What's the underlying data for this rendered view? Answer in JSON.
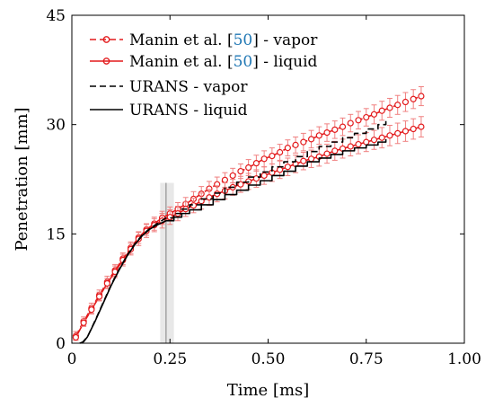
{
  "chart_data": {
    "type": "line",
    "xlabel": "Time [ms]",
    "ylabel": "Penetration [mm]",
    "xlim": [
      0,
      1.0
    ],
    "ylim": [
      0,
      45
    ],
    "xticks": [
      0,
      0.25,
      0.5,
      0.75,
      1.0
    ],
    "xtick_labels": [
      "0",
      "0.25",
      "0.50",
      "0.75",
      "1.00"
    ],
    "yticks": [
      0,
      15,
      30,
      45
    ],
    "ytick_labels": [
      "0",
      "15",
      "30",
      "45"
    ],
    "grid": false,
    "legend_position": "top-left",
    "shaded_band": {
      "x_start": 0.225,
      "x_end": 0.26,
      "marker_x": 0.24,
      "y_top": 22
    },
    "series": [
      {
        "name_prefix": "Manin et al. [",
        "name_ref": "50",
        "name_suffix": "] - vapor",
        "color": "#e31a1c",
        "dash": "dashed",
        "marker": "circle",
        "x": [
          0.01,
          0.03,
          0.05,
          0.07,
          0.09,
          0.11,
          0.13,
          0.15,
          0.17,
          0.19,
          0.21,
          0.23,
          0.25,
          0.27,
          0.29,
          0.31,
          0.33,
          0.35,
          0.37,
          0.39,
          0.41,
          0.43,
          0.45,
          0.47,
          0.49,
          0.51,
          0.53,
          0.55,
          0.57,
          0.59,
          0.61,
          0.63,
          0.65,
          0.67,
          0.69,
          0.71,
          0.73,
          0.75,
          0.77,
          0.79,
          0.81,
          0.83,
          0.85,
          0.87,
          0.89
        ],
        "y": [
          1.0,
          3.0,
          4.8,
          6.6,
          8.4,
          10.0,
          11.6,
          13.1,
          14.5,
          15.6,
          16.4,
          17.2,
          17.8,
          18.4,
          19.1,
          19.8,
          20.5,
          21.2,
          21.8,
          22.4,
          23.0,
          23.6,
          24.1,
          24.7,
          25.3,
          25.7,
          26.2,
          26.8,
          27.2,
          27.6,
          28.0,
          28.5,
          28.9,
          29.3,
          29.7,
          30.2,
          30.6,
          31.0,
          31.4,
          31.9,
          32.3,
          32.7,
          33.1,
          33.5,
          33.9
        ],
        "err": [
          0.6,
          0.6,
          0.7,
          0.7,
          0.8,
          0.8,
          0.8,
          0.8,
          0.8,
          0.8,
          0.9,
          0.9,
          0.9,
          0.9,
          0.9,
          1.0,
          1.0,
          1.0,
          1.0,
          1.0,
          1.0,
          1.0,
          1.1,
          1.1,
          1.1,
          1.1,
          1.1,
          1.1,
          1.1,
          1.2,
          1.2,
          1.2,
          1.2,
          1.2,
          1.2,
          1.2,
          1.2,
          1.2,
          1.3,
          1.3,
          1.3,
          1.3,
          1.3,
          1.3,
          1.3
        ]
      },
      {
        "name_prefix": "Manin et al. [",
        "name_ref": "50",
        "name_suffix": "] - liquid",
        "color": "#e31a1c",
        "dash": "solid",
        "marker": "circle",
        "x": [
          0.01,
          0.03,
          0.05,
          0.07,
          0.09,
          0.11,
          0.13,
          0.15,
          0.17,
          0.19,
          0.21,
          0.23,
          0.25,
          0.27,
          0.29,
          0.31,
          0.33,
          0.35,
          0.37,
          0.39,
          0.41,
          0.43,
          0.45,
          0.47,
          0.49,
          0.51,
          0.53,
          0.55,
          0.57,
          0.59,
          0.61,
          0.63,
          0.65,
          0.67,
          0.69,
          0.71,
          0.73,
          0.75,
          0.77,
          0.79,
          0.81,
          0.83,
          0.85,
          0.87,
          0.89
        ],
        "y": [
          0.8,
          2.8,
          4.6,
          6.4,
          8.2,
          9.8,
          11.4,
          12.9,
          14.3,
          15.4,
          16.2,
          16.8,
          17.3,
          17.8,
          18.4,
          18.9,
          19.5,
          20.0,
          20.5,
          20.9,
          21.4,
          21.8,
          22.2,
          22.6,
          23.0,
          23.4,
          23.8,
          24.2,
          24.6,
          25.0,
          25.3,
          25.6,
          26.0,
          26.4,
          26.7,
          27.0,
          27.3,
          27.6,
          27.9,
          28.2,
          28.5,
          28.8,
          29.1,
          29.4,
          29.7
        ],
        "err": [
          0.4,
          0.5,
          0.6,
          0.6,
          0.7,
          0.8,
          0.8,
          0.8,
          0.9,
          0.9,
          0.9,
          1.0,
          1.0,
          1.0,
          1.0,
          1.0,
          1.1,
          1.1,
          1.1,
          1.1,
          1.1,
          1.1,
          1.1,
          1.2,
          1.2,
          1.2,
          1.2,
          1.2,
          1.2,
          1.2,
          1.2,
          1.3,
          1.3,
          1.3,
          1.3,
          1.3,
          1.3,
          1.3,
          1.3,
          1.4,
          1.4,
          1.4,
          1.4,
          1.4,
          1.4
        ]
      },
      {
        "name": "URANS - vapor",
        "color": "#000000",
        "dash": "dashed",
        "marker": "none",
        "x": [
          0.025,
          0.04,
          0.06,
          0.08,
          0.1,
          0.12,
          0.14,
          0.16,
          0.18,
          0.2,
          0.22,
          0.24,
          0.26,
          0.28,
          0.3,
          0.33,
          0.36,
          0.39,
          0.42,
          0.45,
          0.48,
          0.51,
          0.54,
          0.57,
          0.6,
          0.63,
          0.66,
          0.69,
          0.72,
          0.75,
          0.78,
          0.8
        ],
        "y": [
          0.0,
          0.9,
          3.2,
          5.6,
          8.0,
          10.1,
          12.0,
          13.6,
          14.9,
          15.8,
          16.5,
          17.2,
          17.8,
          18.4,
          19.0,
          19.8,
          20.6,
          21.4,
          22.1,
          22.8,
          23.5,
          24.2,
          24.9,
          25.6,
          26.3,
          27.0,
          27.6,
          28.2,
          28.8,
          29.4,
          30.0,
          30.5
        ]
      },
      {
        "name": "URANS - liquid",
        "color": "#000000",
        "dash": "solid",
        "marker": "none",
        "x": [
          0.02,
          0.03,
          0.04,
          0.06,
          0.08,
          0.1,
          0.12,
          0.14,
          0.16,
          0.18,
          0.2,
          0.22,
          0.24,
          0.26,
          0.28,
          0.3,
          0.33,
          0.36,
          0.39,
          0.42,
          0.45,
          0.48,
          0.51,
          0.54,
          0.57,
          0.6,
          0.63,
          0.66,
          0.69,
          0.72,
          0.75,
          0.78,
          0.8
        ],
        "y": [
          0.0,
          0.2,
          0.9,
          3.1,
          5.5,
          7.9,
          10.0,
          11.9,
          13.5,
          14.8,
          15.7,
          16.3,
          16.8,
          17.3,
          17.8,
          18.3,
          19.0,
          19.7,
          20.4,
          21.0,
          21.7,
          22.3,
          23.0,
          23.6,
          24.3,
          24.9,
          25.4,
          25.9,
          26.4,
          26.8,
          27.2,
          27.6,
          28.0
        ]
      }
    ]
  }
}
